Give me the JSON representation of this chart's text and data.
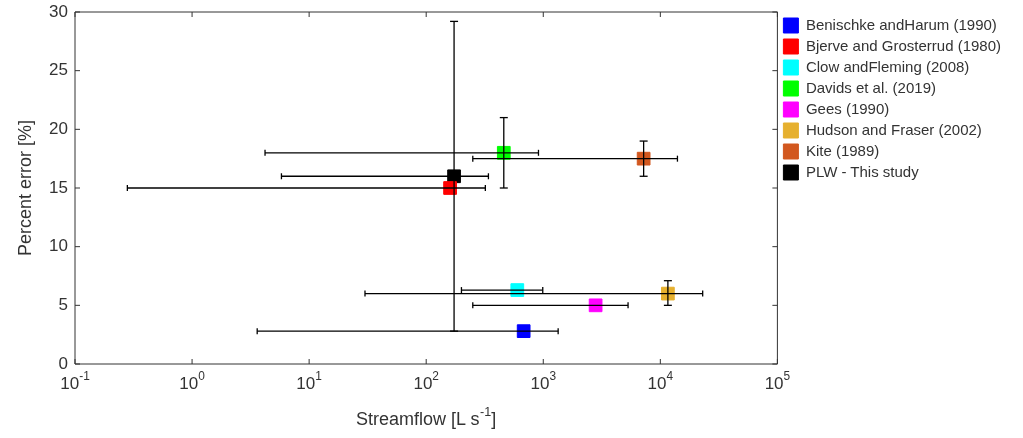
{
  "chart_data": {
    "type": "scatter",
    "xlabel": "Streamflow [L s$^{-1}$]",
    "ylabel": "Percent error [%]",
    "log": "x",
    "xlim": [
      0.1,
      100000
    ],
    "ylim": [
      0,
      30
    ],
    "xticks": [
      {
        "value": 0.1,
        "label": "10$^{-1}$"
      },
      {
        "value": 1,
        "label": "10$^{0}$"
      },
      {
        "value": 10,
        "label": "10$^{1}$"
      },
      {
        "value": 100,
        "label": "10$^{2}$"
      },
      {
        "value": 1000,
        "label": "10$^{3}$"
      },
      {
        "value": 10000,
        "label": "10$^{4}$"
      },
      {
        "value": 100000,
        "label": "10$^{5}$"
      }
    ],
    "yticks": [
      0,
      5,
      10,
      15,
      20,
      25,
      30
    ],
    "grid": false,
    "legend": "right",
    "marker": "square",
    "series": [
      {
        "name": "Benischke andHarum (1990)",
        "color": "#0000ff",
        "x": [
          680
        ],
        "values": [
          2.8
        ],
        "xerrors": [
          [
            3.6,
            1340
          ]
        ]
      },
      {
        "name": "Bjerve and Grosterrud (1980)",
        "color": "#ff0000",
        "x": [
          160
        ],
        "values": [
          15
        ],
        "xerrors": [
          [
            0.28,
            320
          ]
        ]
      },
      {
        "name": "Clow andFleming (2008)",
        "color": "#00ffff",
        "x": [
          600
        ],
        "values": [
          6.3
        ],
        "xerrors": [
          [
            200,
            990
          ]
        ]
      },
      {
        "name": "Davids et al. (2019)",
        "color": "#00ff00",
        "x": [
          460
        ],
        "values": [
          18
        ],
        "errors": [
          [
            15,
            21
          ]
        ],
        "xerrors": [
          [
            4.2,
            910
          ]
        ]
      },
      {
        "name": "Gees (1990)",
        "color": "#ff00ff",
        "x": [
          2800
        ],
        "values": [
          5
        ],
        "xerrors": [
          [
            250,
            5300
          ]
        ]
      },
      {
        "name": "Hudson and Fraser (2002)",
        "color": "#e6b02e",
        "x": [
          11600
        ],
        "values": [
          6
        ],
        "errors": [
          [
            5,
            7.1
          ]
        ],
        "xerrors": [
          [
            30,
            23000
          ]
        ]
      },
      {
        "name": "Kite (1989)",
        "color": "#d2581f",
        "x": [
          7200
        ],
        "values": [
          17.5
        ],
        "errors": [
          [
            16,
            19
          ]
        ],
        "xerrors": [
          [
            250,
            14000
          ]
        ]
      },
      {
        "name": "PLW - This study",
        "color": "#000000",
        "x": [
          173
        ],
        "values": [
          16
        ],
        "errors": [
          [
            2.8,
            29.2
          ]
        ],
        "xerrors": [
          [
            5.8,
            340
          ]
        ]
      }
    ]
  }
}
